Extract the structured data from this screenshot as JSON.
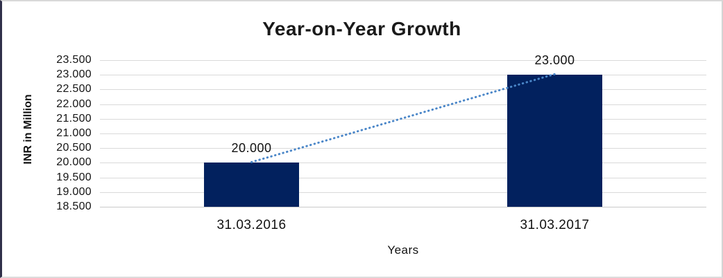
{
  "chart_data": {
    "type": "bar",
    "title": "Year-on-Year Growth",
    "xlabel": "Years",
    "ylabel": "INR in Million",
    "categories": [
      "31.03.2016",
      "31.03.2017"
    ],
    "values": [
      20.0,
      23.0
    ],
    "data_labels": [
      "20.000",
      "23.000"
    ],
    "ylim": [
      18.5,
      23.5
    ],
    "ytick_step": 0.5,
    "ytick_labels": [
      "23.500",
      "23.000",
      "22.500",
      "22.000",
      "21.500",
      "21.000",
      "20.500",
      "20.000",
      "19.500",
      "19.000",
      "18.500"
    ],
    "grid": "horizontal",
    "legend": "none",
    "bar_color": "#02215e",
    "trendline": true,
    "trendline_style": "dotted",
    "trendline_color": "#4a86c8",
    "gridline_color": "#d9d9d9"
  }
}
